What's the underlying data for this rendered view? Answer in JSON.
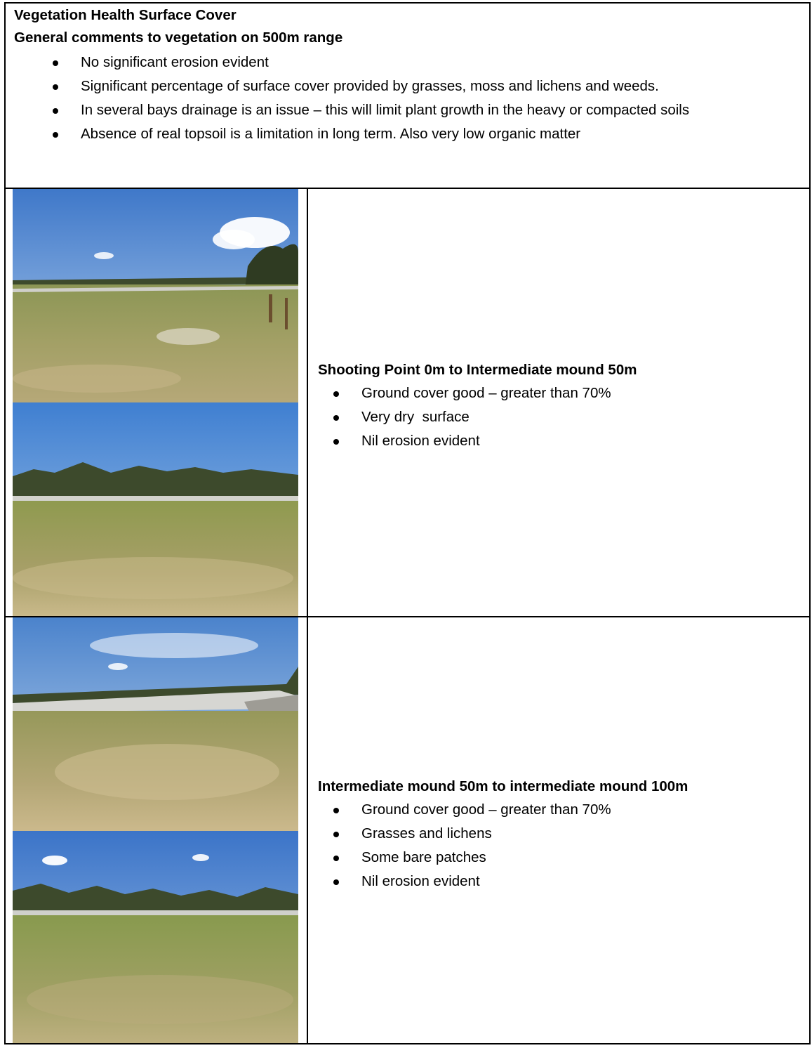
{
  "header": {
    "title": "Vegetation Health Surface Cover",
    "subtitle": "General comments to vegetation on 500m range",
    "bullets": [
      "No significant erosion evident",
      "Significant percentage of surface cover provided by grasses, moss and lichens and weeds.",
      "In several bays drainage is an issue – this will limit plant growth in the heavy or compacted soils",
      "Absence of real topsoil is a limitation in long term. Also very low organic matter"
    ]
  },
  "sections": [
    {
      "heading": "Shooting Point 0m to Intermediate mound 50m",
      "bullets": [
        "Ground cover good – greater than 70%",
        "Very dry  surface",
        "Nil erosion evident"
      ]
    },
    {
      "heading": "Intermediate mound 50m to intermediate mound 100m",
      "bullets": [
        "Ground cover good – greater than 70%",
        "Grasses and lichens",
        "Some bare patches",
        "Nil erosion evident"
      ]
    }
  ],
  "colors": {
    "sky_top": "#3f7fd1",
    "sky_bottom": "#a9c8ea",
    "grass": "#8f9a4f",
    "dry_soil": "#c9b98a",
    "treeline": "#3d4a2c"
  }
}
